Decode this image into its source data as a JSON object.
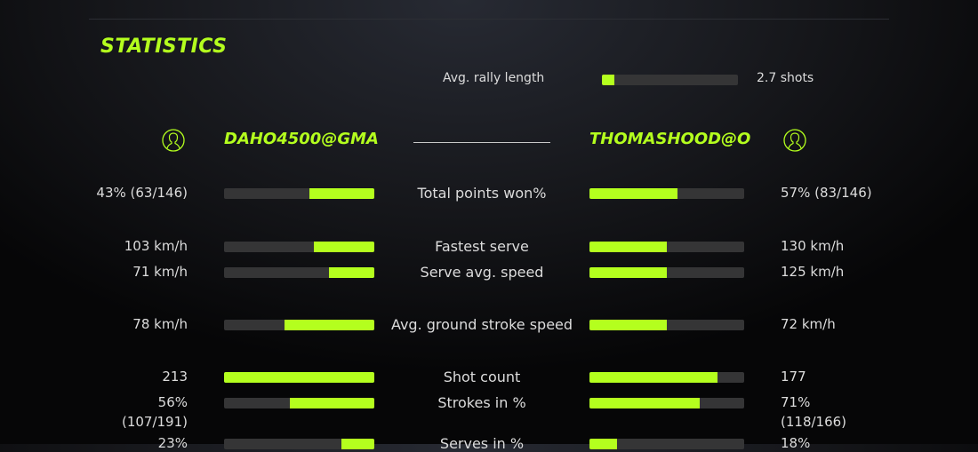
{
  "title": "STATISTICS",
  "accent": "#b4ff1e",
  "rally": {
    "label": "Avg. rally length",
    "value": "2.7 shots",
    "fill": 0.09
  },
  "players": {
    "left": {
      "name": "DAHO4500@GMA",
      "icon": "user-icon"
    },
    "right": {
      "name": "THOMASHOOD@O",
      "icon": "user-icon"
    }
  },
  "stats": [
    {
      "label": "Total points won%",
      "left": "43% (63/146)",
      "right": "57% (83/146)",
      "left_fill": 0.43,
      "right_fill": 0.57
    },
    {
      "label": "Fastest serve",
      "left": "103 km/h",
      "right": "130 km/h",
      "left_fill": 0.4,
      "right_fill": 0.5
    },
    {
      "label": "Serve avg. speed",
      "left": "71 km/h",
      "right": "125 km/h",
      "left_fill": 0.3,
      "right_fill": 0.5
    },
    {
      "label": "Avg. ground stroke speed",
      "left": "78 km/h",
      "right": "72 km/h",
      "left_fill": 0.6,
      "right_fill": 0.5
    },
    {
      "label": "Shot count",
      "left": "213",
      "right": "177",
      "left_fill": 1.0,
      "right_fill": 0.83
    },
    {
      "label": "Strokes in %",
      "left": "56%",
      "left2": "(107/191)",
      "right": "71%",
      "right2": "(118/166)",
      "left_fill": 0.56,
      "right_fill": 0.71
    },
    {
      "label": "Serves in %",
      "left": "23%",
      "right": "18%",
      "left_fill": 0.22,
      "right_fill": 0.18
    }
  ]
}
